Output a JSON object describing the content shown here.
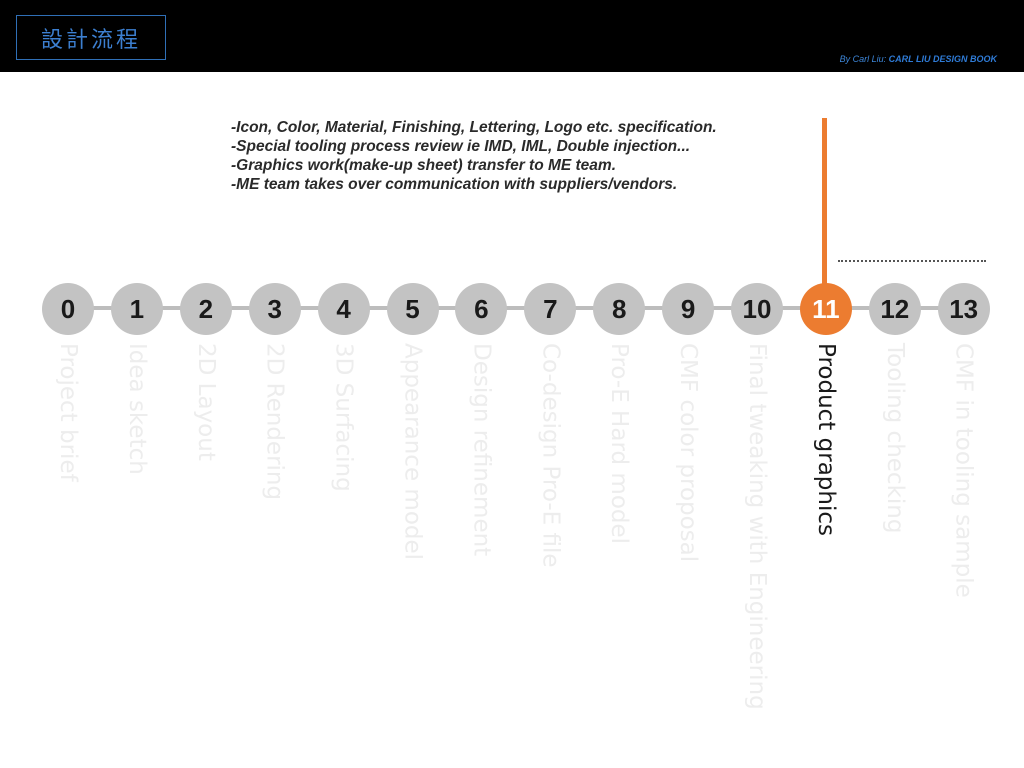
{
  "header": {
    "title": "設計流程",
    "credit_by": "By Carl Liu:",
    "credit_book": "CARL LIU DESIGN BOOK"
  },
  "notes": [
    "-Icon, Color, Material, Finishing, Lettering, Logo etc. specification.",
    "-Special tooling process review ie IMD, IML, Double injection...",
    "-Graphics work(make-up sheet) transfer to ME team.",
    "-ME team takes over communication with suppliers/vendors."
  ],
  "steps": [
    {
      "num": "0",
      "label": "Project brief"
    },
    {
      "num": "1",
      "label": "Idea sketch"
    },
    {
      "num": "2",
      "label": "2D Layout"
    },
    {
      "num": "3",
      "label": "2D Rendering"
    },
    {
      "num": "4",
      "label": "3D Surfacing"
    },
    {
      "num": "5",
      "label": "Appearance model"
    },
    {
      "num": "6",
      "label": "Design refinement"
    },
    {
      "num": "7",
      "label": "Co-design Pro-E file"
    },
    {
      "num": "8",
      "label": "Pro-E Hard model"
    },
    {
      "num": "9",
      "label": "CMF color proposal"
    },
    {
      "num": "10",
      "label": "Final tweaking with Engineering"
    },
    {
      "num": "11",
      "label": "Product graphics"
    },
    {
      "num": "12",
      "label": "Tooling checking"
    },
    {
      "num": "13",
      "label": "CMF in tooling sample"
    }
  ],
  "active_step": "11",
  "colors": {
    "accent": "#ec7c30",
    "node": "#c3c3c3",
    "title_blue": "#3c7fd0",
    "inactive_label": "#ededed"
  }
}
